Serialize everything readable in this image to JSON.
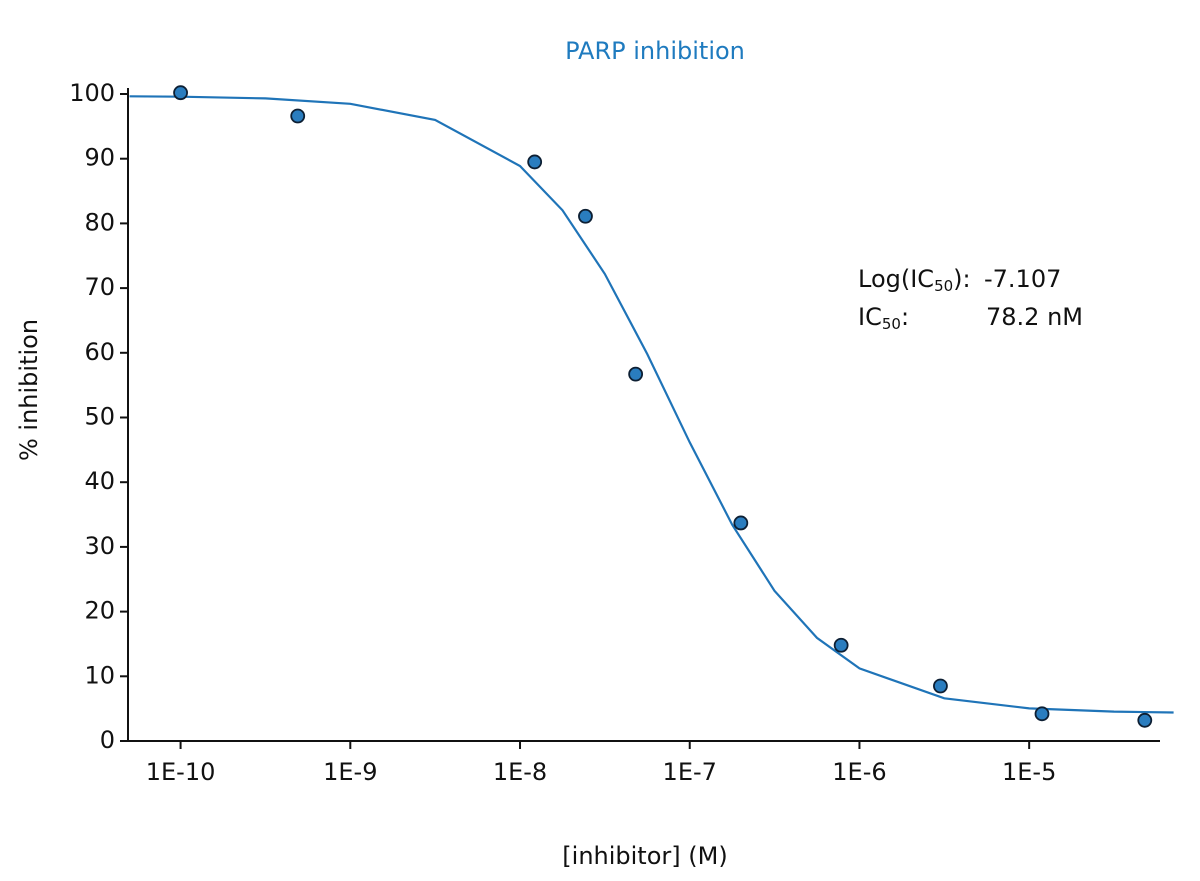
{
  "chart_data": {
    "type": "scatter",
    "title": "PARP inhibition",
    "x_label": "[inhibitor] (M)",
    "y_label": "% inhibition",
    "x_log": true,
    "xlim": [
      4.9e-11,
      5.9e-05
    ],
    "ylim": [
      0,
      100
    ],
    "xticks": [
      {
        "value": 1e-10,
        "label": "1E-10"
      },
      {
        "value": 1e-09,
        "label": "1E-9"
      },
      {
        "value": 1e-08,
        "label": "1E-8"
      },
      {
        "value": 1e-07,
        "label": "1E-7"
      },
      {
        "value": 1e-06,
        "label": "1E-6"
      },
      {
        "value": 1e-05,
        "label": "1E-5"
      }
    ],
    "yticks": [
      0,
      10,
      20,
      30,
      40,
      50,
      60,
      70,
      80,
      90,
      100
    ],
    "series": [
      {
        "mode": "points",
        "color": "#2a7dbf",
        "x": [
          1e-10,
          4.9e-10,
          1.22e-08,
          2.43e-08,
          4.8e-08,
          2e-07,
          7.8e-07,
          3e-06,
          1.19e-05,
          4.8e-05
        ],
        "values": [
          100.2,
          96.6,
          89.5,
          81.1,
          56.7,
          33.7,
          14.8,
          8.5,
          4.2,
          3.2
        ]
      },
      {
        "mode": "line",
        "color": "#1f74b8",
        "x": [
          5e-11,
          1e-10,
          3.16e-10,
          1e-09,
          3.16e-09,
          1e-08,
          1.78e-08,
          3.16e-08,
          5.62e-08,
          1e-07,
          1.78e-07,
          3.16e-07,
          5.62e-07,
          1e-06,
          3.16e-06,
          1e-05,
          3.16e-05,
          7.1e-05
        ],
        "values": [
          99.64,
          99.58,
          99.32,
          98.49,
          95.99,
          88.87,
          82.02,
          72.2,
          59.8,
          46.16,
          33.43,
          23.21,
          15.94,
          11.22,
          6.6,
          5.04,
          4.54,
          4.41
        ]
      }
    ],
    "annotations": [
      {
        "parts": [
          "Log(IC",
          "50",
          "):"
        ],
        "value": "-7.107"
      },
      {
        "parts": [
          "IC",
          "50",
          ":"
        ],
        "value": "78.2 nM"
      }
    ]
  }
}
